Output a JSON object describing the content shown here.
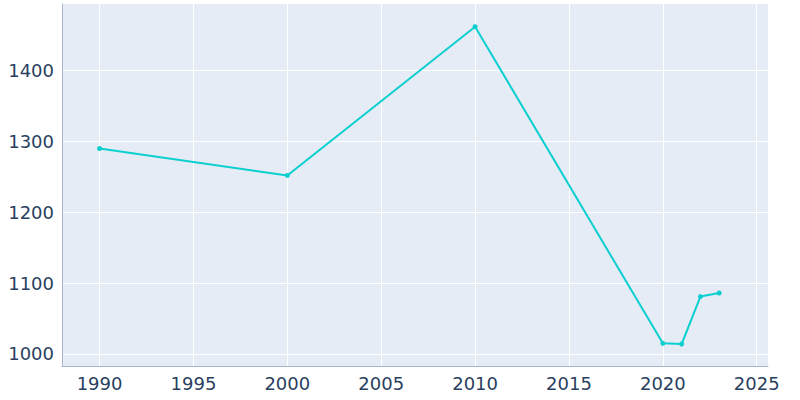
{
  "chart_data": {
    "type": "line",
    "x": [
      1990,
      2000,
      2010,
      2020,
      2021,
      2022,
      2023
    ],
    "values": [
      1290,
      1252,
      1462,
      1015,
      1014,
      1081,
      1086
    ],
    "color": "#0ccfcf",
    "marker": "circle",
    "xlim": [
      1988,
      2025.6
    ],
    "xticks": [
      1990,
      1995,
      2000,
      2005,
      2010,
      2015,
      2020,
      2025
    ],
    "ylim": [
      983,
      1494
    ],
    "yticks": [
      1000,
      1100,
      1200,
      1300,
      1400
    ],
    "grid": true
  }
}
